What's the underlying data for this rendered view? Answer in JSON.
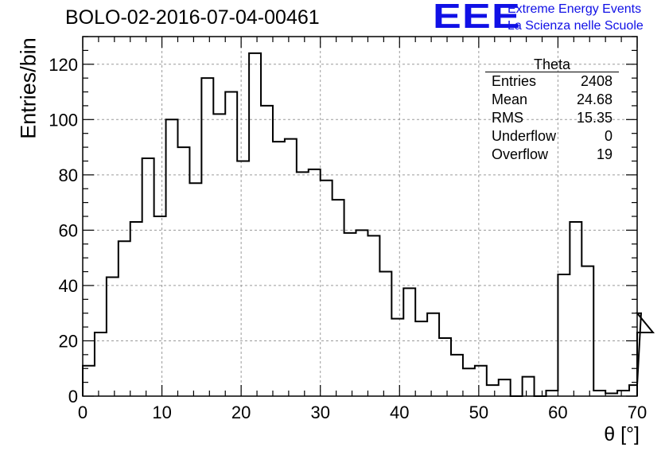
{
  "chart_data": {
    "type": "histogram",
    "title": "BOLO-02-2016-07-04-00461",
    "xlabel": "θ [°]",
    "ylabel": "Entries/bin",
    "xlim": [
      0,
      70
    ],
    "ylim": [
      0,
      130
    ],
    "bin_width": 1.5,
    "x_ticks": [
      0,
      10,
      20,
      30,
      40,
      50,
      60,
      70
    ],
    "y_ticks": [
      0,
      20,
      40,
      60,
      80,
      100,
      120
    ],
    "grid": true,
    "values": [
      11,
      23,
      43,
      56,
      63,
      86,
      65,
      100,
      90,
      77,
      115,
      102,
      110,
      85,
      124,
      105,
      92,
      93,
      81,
      82,
      78,
      71,
      59,
      60,
      58,
      45,
      28,
      39,
      27,
      30,
      21,
      15,
      10,
      11,
      4,
      6,
      0,
      7,
      0,
      2,
      44,
      63,
      47,
      2,
      1,
      2,
      4,
      30,
      23
    ]
  },
  "stats_box": {
    "title": "Theta",
    "rows": [
      {
        "label": "Entries",
        "value": "2408"
      },
      {
        "label": "Mean",
        "value": "24.68"
      },
      {
        "label": "RMS",
        "value": "15.35"
      },
      {
        "label": "Underflow",
        "value": "0"
      },
      {
        "label": "Overflow",
        "value": "19"
      }
    ]
  },
  "logo": {
    "mark": "EEE",
    "line1": "Extreme Energy Events",
    "line2": "La Scienza nelle Scuole",
    "color": "#1010e6"
  }
}
